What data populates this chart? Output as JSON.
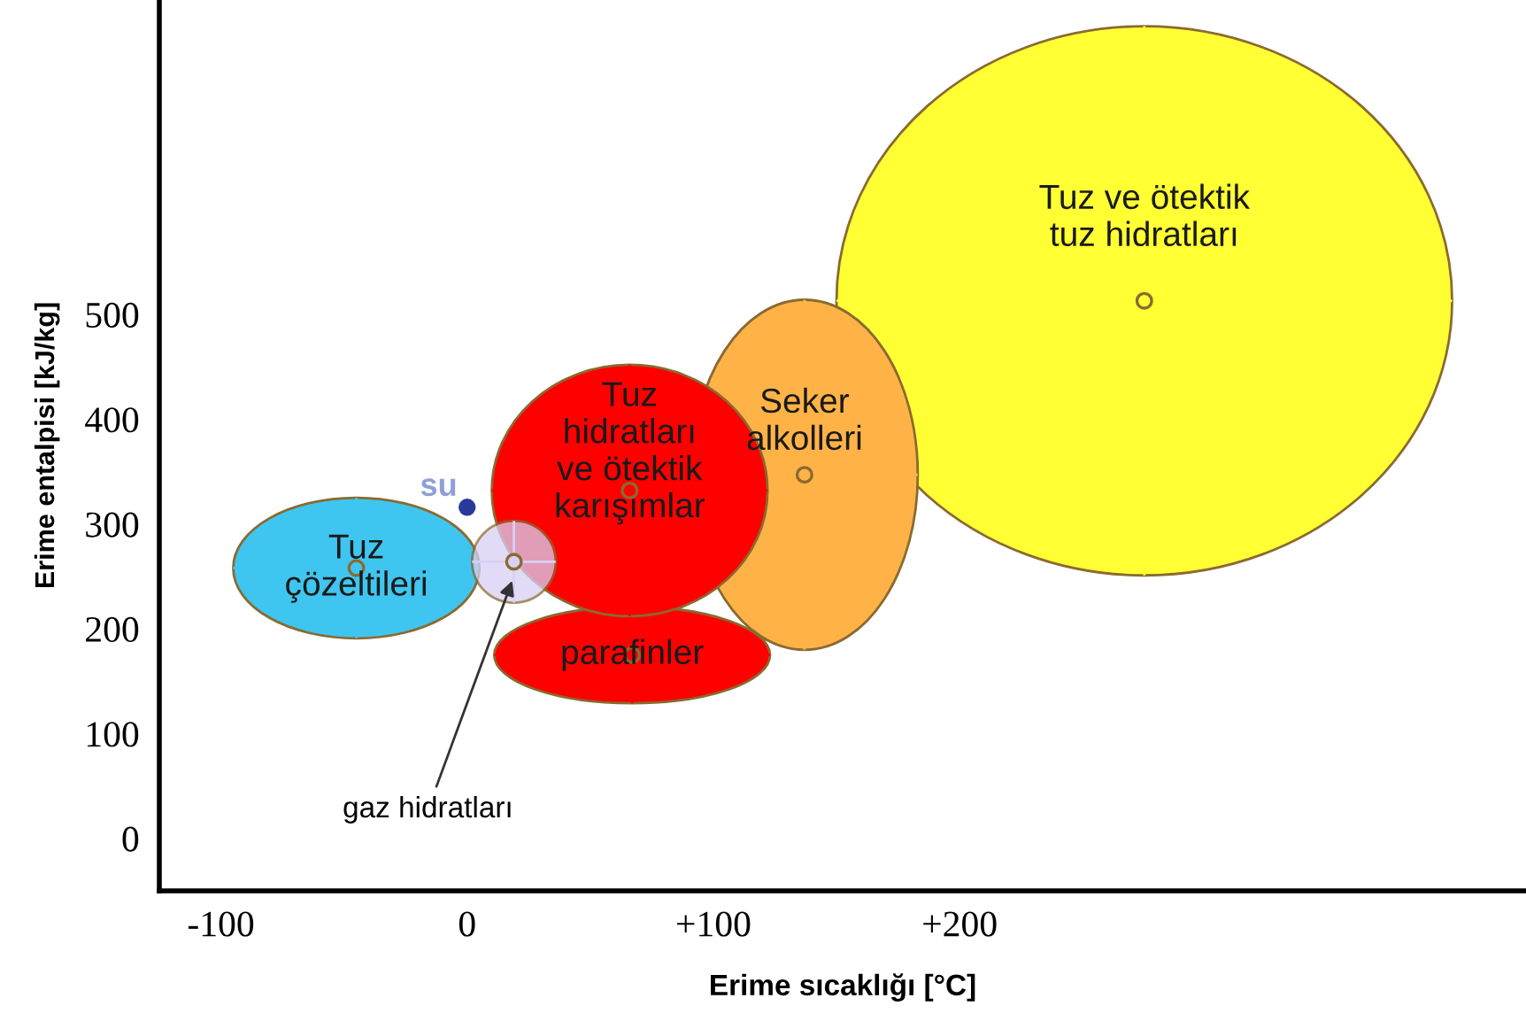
{
  "chart_data": {
    "type": "scatter",
    "xlabel": "Erime sıcaklığı [°C]",
    "ylabel": "Erime entalpisi [kJ/kg]",
    "xlim": [
      -125,
      430
    ],
    "ylim": [
      -50,
      800
    ],
    "xticks": [
      {
        "value": -100,
        "label": "-100"
      },
      0,
      {
        "value": 100,
        "label": "+100"
      },
      {
        "value": 200,
        "label": "+200"
      }
    ],
    "yticks": [
      0,
      100,
      200,
      300,
      400,
      500
    ],
    "grid": false,
    "marker": "circle",
    "series": [
      {
        "name": "Tuz ve ötektik\ntuz hidratları",
        "color": "#ffff33",
        "x": [
          275
        ],
        "values": [
          513
        ],
        "xerrors": [
          125
        ],
        "errors": [
          262
        ]
      },
      {
        "name": "Seker\nalkolleri",
        "color": "#ffb347",
        "x": [
          137
        ],
        "values": [
          347
        ],
        "xerrors": [
          46
        ],
        "errors": [
          167
        ]
      },
      {
        "name": "parafinler",
        "color": "#ff0000",
        "x": [
          67
        ],
        "values": [
          175
        ],
        "xerrors": [
          56
        ],
        "errors": [
          46
        ]
      },
      {
        "name": "Tuz\nhidratları\nve ötektik\nkarışımlar",
        "color": "#ff0000",
        "x": [
          66
        ],
        "values": [
          332
        ],
        "xerrors": [
          56
        ],
        "errors": [
          120
        ]
      },
      {
        "name": "Tuz\nçözeltileri",
        "color": "#3fc6f0",
        "x": [
          -45
        ],
        "values": [
          258
        ],
        "xerrors": [
          50
        ],
        "errors": [
          67
        ]
      },
      {
        "name": "gaz hidratları",
        "color": "#d8d0f5",
        "x": [
          19
        ],
        "values": [
          264
        ],
        "xerrors": [
          17
        ],
        "errors": [
          39
        ]
      },
      {
        "name": "su",
        "color": "#2a3a9a",
        "x": [
          0
        ],
        "values": [
          316
        ]
      }
    ]
  }
}
